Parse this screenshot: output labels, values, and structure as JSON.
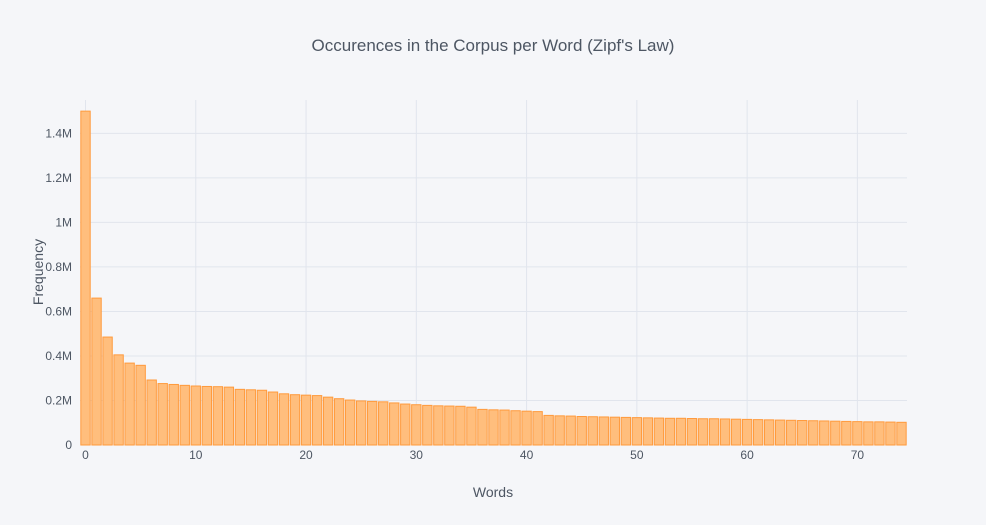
{
  "chart_data": {
    "type": "bar",
    "title": "Occurences in the Corpus per Word (Zipf's Law)",
    "xlabel": "Words",
    "ylabel": "Frequency",
    "x": [
      0,
      1,
      2,
      3,
      4,
      5,
      6,
      7,
      8,
      9,
      10,
      11,
      12,
      13,
      14,
      15,
      16,
      17,
      18,
      19,
      20,
      21,
      22,
      23,
      24,
      25,
      26,
      27,
      28,
      29,
      30,
      31,
      32,
      33,
      34,
      35,
      36,
      37,
      38,
      39,
      40,
      41,
      42,
      43,
      44,
      45,
      46,
      47,
      48,
      49,
      50,
      51,
      52,
      53,
      54,
      55,
      56,
      57,
      58,
      59,
      60,
      61,
      62,
      63,
      64,
      65,
      66,
      67,
      68,
      69,
      70,
      71,
      72,
      73,
      74
    ],
    "values": [
      1500000,
      660000,
      485000,
      405000,
      368000,
      358000,
      292000,
      276000,
      272000,
      268000,
      265000,
      263000,
      262000,
      260000,
      250000,
      248000,
      246000,
      238000,
      230000,
      226000,
      224000,
      222000,
      215000,
      208000,
      202000,
      198000,
      196000,
      194000,
      189000,
      184000,
      181000,
      178000,
      176000,
      175000,
      174000,
      170000,
      160000,
      158000,
      157000,
      154000,
      152000,
      150000,
      133000,
      131000,
      130000,
      128000,
      127000,
      126000,
      125000,
      124000,
      123000,
      122000,
      121000,
      120000,
      120000,
      119000,
      118000,
      118000,
      117000,
      116000,
      115000,
      114000,
      113000,
      112000,
      111000,
      110000,
      109000,
      108000,
      107000,
      106000,
      105000,
      104000,
      104000,
      103000,
      102000
    ],
    "ylim": [
      0,
      1550000
    ],
    "xlim": [
      -0.5,
      74.5
    ],
    "yticks": [
      0,
      200000,
      400000,
      600000,
      800000,
      1000000,
      1200000,
      1400000
    ],
    "ytick_labels": [
      "0",
      "0.2M",
      "0.4M",
      "0.6M",
      "0.8M",
      "1M",
      "1.2M",
      "1.4M"
    ],
    "xticks": [
      0,
      10,
      20,
      30,
      40,
      50,
      60,
      70
    ],
    "xtick_labels": [
      "0",
      "10",
      "20",
      "30",
      "40",
      "50",
      "60",
      "70"
    ],
    "grid": true,
    "colors": {
      "bar_fill": "#ffbe7d",
      "bar_stroke": "#ff9a3c",
      "grid": "#e1e5ed",
      "text": "#4d5663",
      "background": "#f5f6f9"
    }
  }
}
